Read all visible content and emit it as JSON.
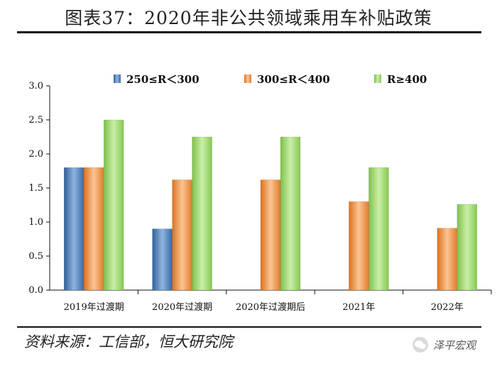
{
  "figure": {
    "title": "图表37：2020年非公共领域乘用车补贴政策",
    "source": "资料来源：工信部，恒大研究院",
    "watermark": "泽平宏观"
  },
  "chart_data": {
    "type": "bar",
    "categories": [
      "2019年过渡期",
      "2020年过渡期",
      "2020年过渡期后",
      "2021年",
      "2022年"
    ],
    "series": [
      {
        "name": "250≤R＜300",
        "color": "#4f81bd",
        "values": [
          1.8,
          0.9,
          null,
          null,
          null
        ]
      },
      {
        "name": "300≤R＜400",
        "color": "#f79646",
        "values": [
          1.8,
          1.62,
          1.62,
          1.3,
          0.91
        ]
      },
      {
        "name": "R≥400",
        "color": "#9bd56b",
        "values": [
          2.5,
          2.25,
          2.25,
          1.8,
          1.26
        ]
      }
    ],
    "yticks": [
      "0.0",
      "0.5",
      "1.0",
      "1.5",
      "2.0",
      "2.5",
      "3.0"
    ],
    "ylim": [
      0,
      3.0
    ],
    "xlabel": "",
    "ylabel": "",
    "legend_position": "top"
  }
}
